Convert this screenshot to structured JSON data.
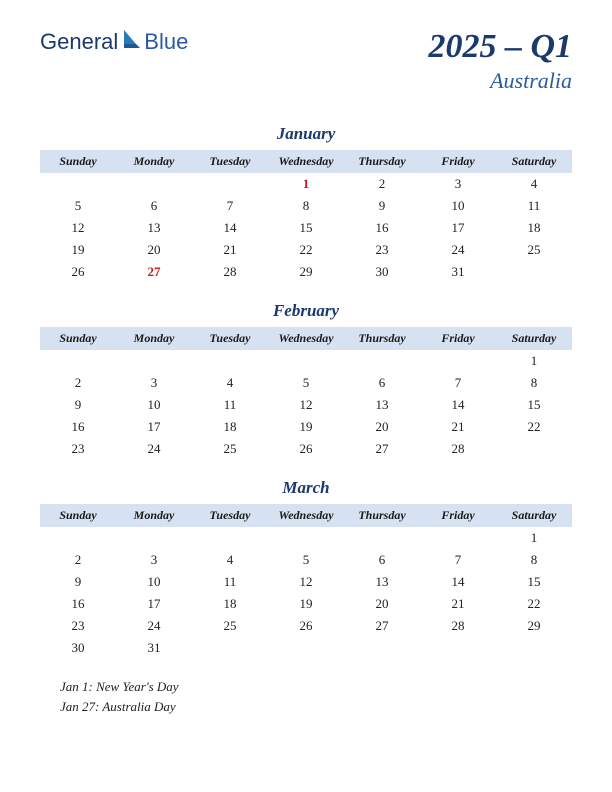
{
  "logo": {
    "part1": "General",
    "part2": "Blue"
  },
  "title": {
    "main": "2025 – Q1",
    "sub": "Australia"
  },
  "colors": {
    "header_bg": "#d6e2f2",
    "title_color": "#1a3a6e",
    "sub_color": "#2a5aa0",
    "holiday_color": "#c41e1e",
    "text_color": "#222222",
    "bg": "#ffffff"
  },
  "day_headers": [
    "Sunday",
    "Monday",
    "Tuesday",
    "Wednesday",
    "Thursday",
    "Friday",
    "Saturday"
  ],
  "months": [
    {
      "name": "January",
      "weeks": [
        [
          "",
          "",
          "",
          "1",
          "2",
          "3",
          "4"
        ],
        [
          "5",
          "6",
          "7",
          "8",
          "9",
          "10",
          "11"
        ],
        [
          "12",
          "13",
          "14",
          "15",
          "16",
          "17",
          "18"
        ],
        [
          "19",
          "20",
          "21",
          "22",
          "23",
          "24",
          "25"
        ],
        [
          "26",
          "27",
          "28",
          "29",
          "30",
          "31",
          ""
        ]
      ],
      "holiday_cells": [
        [
          0,
          3
        ],
        [
          4,
          1
        ]
      ]
    },
    {
      "name": "February",
      "weeks": [
        [
          "",
          "",
          "",
          "",
          "",
          "",
          "1"
        ],
        [
          "2",
          "3",
          "4",
          "5",
          "6",
          "7",
          "8"
        ],
        [
          "9",
          "10",
          "11",
          "12",
          "13",
          "14",
          "15"
        ],
        [
          "16",
          "17",
          "18",
          "19",
          "20",
          "21",
          "22"
        ],
        [
          "23",
          "24",
          "25",
          "26",
          "27",
          "28",
          ""
        ]
      ],
      "holiday_cells": []
    },
    {
      "name": "March",
      "weeks": [
        [
          "",
          "",
          "",
          "",
          "",
          "",
          "1"
        ],
        [
          "2",
          "3",
          "4",
          "5",
          "6",
          "7",
          "8"
        ],
        [
          "9",
          "10",
          "11",
          "12",
          "13",
          "14",
          "15"
        ],
        [
          "16",
          "17",
          "18",
          "19",
          "20",
          "21",
          "22"
        ],
        [
          "23",
          "24",
          "25",
          "26",
          "27",
          "28",
          "29"
        ],
        [
          "30",
          "31",
          "",
          "",
          "",
          "",
          ""
        ]
      ],
      "holiday_cells": []
    }
  ],
  "holiday_list": [
    "Jan 1: New Year's Day",
    "Jan 27: Australia Day"
  ]
}
